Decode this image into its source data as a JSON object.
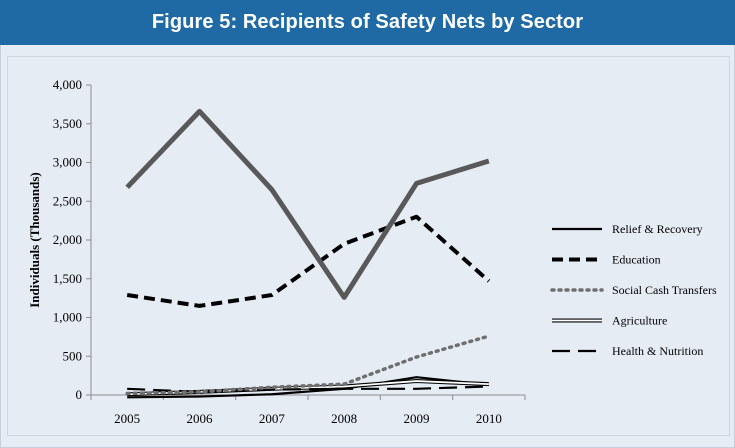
{
  "figure": {
    "title": "Figure 5: Recipients of Safety Nets by Sector"
  },
  "colors": {
    "title_bar": "#1f6aa5",
    "panel_bg": "#e6ecf4",
    "dark_gray_line": "#595959",
    "black": "#000000",
    "dotted_gray": "#6f6f6f"
  },
  "chart_data": {
    "type": "line",
    "title": "",
    "xlabel": "",
    "ylabel": "Individuals (Thousands)",
    "categories": [
      "2005",
      "2006",
      "2007",
      "2008",
      "2009",
      "2010"
    ],
    "ylim": [
      0,
      4000
    ],
    "yticks": [
      "0",
      "500",
      "1,000",
      "1,500",
      "2,000",
      "2,500",
      "3,000",
      "3,500",
      "4,000"
    ],
    "grid": false,
    "legend_position": "right",
    "series": [
      {
        "name": "",
        "style": "solid-thick-gray",
        "values": [
          2680,
          3660,
          2650,
          1260,
          2730,
          3020
        ]
      },
      {
        "name": "Relief & Recovery",
        "style": "solid",
        "values": [
          -30,
          -20,
          10,
          80,
          230,
          130
        ]
      },
      {
        "name": "Education",
        "style": "dashed",
        "values": [
          1290,
          1150,
          1290,
          1950,
          2300,
          1470
        ]
      },
      {
        "name": "Social Cash Transfers",
        "style": "dotted",
        "values": [
          20,
          40,
          100,
          140,
          490,
          760
        ]
      },
      {
        "name": "Agriculture",
        "style": "double",
        "values": [
          10,
          40,
          80,
          110,
          180,
          140
        ]
      },
      {
        "name": "Health & Nutrition",
        "style": "long-dash",
        "values": [
          80,
          40,
          70,
          80,
          80,
          110
        ]
      }
    ]
  }
}
